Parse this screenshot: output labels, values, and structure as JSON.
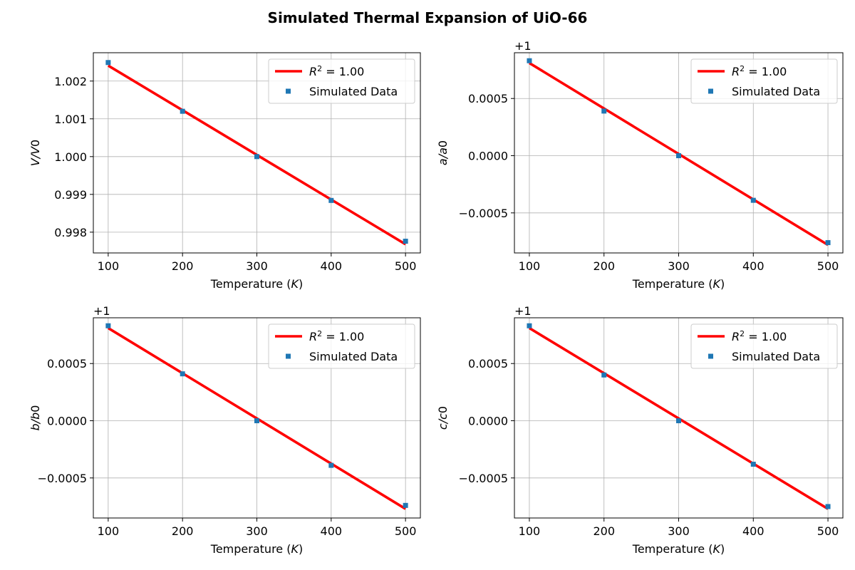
{
  "figure": {
    "title": "Simulated Thermal Expansion of UiO-66"
  },
  "chart_data": [
    {
      "type": "scatter",
      "xlabel": "Temperature (K)",
      "ylabel": "V/V0",
      "xlim": [
        80,
        520
      ],
      "ylim": [
        0.99745,
        1.00275
      ],
      "xticks": [
        "100",
        "200",
        "300",
        "400",
        "500"
      ],
      "yticks": [
        "0.998",
        "0.999",
        "1.000",
        "1.001",
        "1.002"
      ],
      "ytick_values": [
        0.998,
        0.999,
        1.0,
        1.001,
        1.002
      ],
      "offset_text": "",
      "grid": true,
      "legend_position": "top-right",
      "series": [
        {
          "name": "R² = 1.00",
          "kind": "line",
          "color": "#ff0000",
          "x": [
            100,
            500
          ],
          "y": [
            1.00241,
            0.99768
          ]
        },
        {
          "name": "Simulated Data",
          "kind": "scatter",
          "color": "#1f77b4",
          "x": [
            100,
            200,
            300,
            400,
            500
          ],
          "y": [
            1.00249,
            1.0012,
            1.0,
            0.99884,
            0.99776
          ]
        }
      ]
    },
    {
      "type": "scatter",
      "xlabel": "Temperature (K)",
      "ylabel": "a/a0",
      "xlim": [
        80,
        520
      ],
      "ylim": [
        -0.00085,
        0.0009
      ],
      "xticks": [
        "100",
        "200",
        "300",
        "400",
        "500"
      ],
      "yticks": [
        "−0.0005",
        "0.0000",
        "0.0005"
      ],
      "ytick_values": [
        -0.0005,
        0.0,
        0.0005
      ],
      "offset_text": "+1",
      "grid": true,
      "legend_position": "top-right",
      "series": [
        {
          "name": "R² = 1.00",
          "kind": "line",
          "color": "#ff0000",
          "x": [
            100,
            500
          ],
          "y": [
            0.00081,
            -0.00078
          ]
        },
        {
          "name": "Simulated Data",
          "kind": "scatter",
          "color": "#1f77b4",
          "x": [
            100,
            200,
            300,
            400,
            500
          ],
          "y": [
            0.00083,
            0.00039,
            0.0,
            -0.00039,
            -0.00076
          ]
        }
      ]
    },
    {
      "type": "scatter",
      "xlabel": "Temperature (K)",
      "ylabel": "b/b0",
      "xlim": [
        80,
        520
      ],
      "ylim": [
        -0.00085,
        0.0009
      ],
      "xticks": [
        "100",
        "200",
        "300",
        "400",
        "500"
      ],
      "yticks": [
        "−0.0005",
        "0.0000",
        "0.0005"
      ],
      "ytick_values": [
        -0.0005,
        0.0,
        0.0005
      ],
      "offset_text": "+1",
      "grid": true,
      "legend_position": "top-right",
      "series": [
        {
          "name": "R² = 1.00",
          "kind": "line",
          "color": "#ff0000",
          "x": [
            100,
            500
          ],
          "y": [
            0.00081,
            -0.00077
          ]
        },
        {
          "name": "Simulated Data",
          "kind": "scatter",
          "color": "#1f77b4",
          "x": [
            100,
            200,
            300,
            400,
            500
          ],
          "y": [
            0.00083,
            0.00041,
            0.0,
            -0.00039,
            -0.00074
          ]
        }
      ]
    },
    {
      "type": "scatter",
      "xlabel": "Temperature (K)",
      "ylabel": "c/c0",
      "xlim": [
        80,
        520
      ],
      "ylim": [
        -0.00085,
        0.0009
      ],
      "xticks": [
        "100",
        "200",
        "300",
        "400",
        "500"
      ],
      "yticks": [
        "−0.0005",
        "0.0000",
        "0.0005"
      ],
      "ytick_values": [
        -0.0005,
        0.0,
        0.0005
      ],
      "offset_text": "+1",
      "grid": true,
      "legend_position": "top-right",
      "series": [
        {
          "name": "R² = 1.00",
          "kind": "line",
          "color": "#ff0000",
          "x": [
            100,
            500
          ],
          "y": [
            0.00081,
            -0.00077
          ]
        },
        {
          "name": "Simulated Data",
          "kind": "scatter",
          "color": "#1f77b4",
          "x": [
            100,
            200,
            300,
            400,
            500
          ],
          "y": [
            0.00083,
            0.0004,
            0.0,
            -0.00038,
            -0.00075
          ]
        }
      ]
    }
  ]
}
